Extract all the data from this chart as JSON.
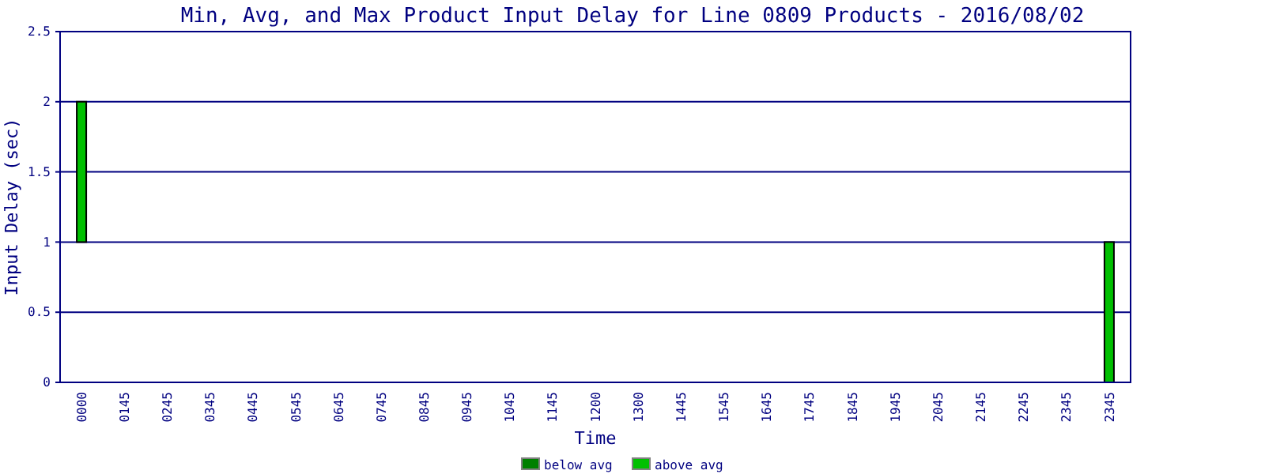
{
  "chart_data": {
    "type": "bar",
    "title": "Min, Avg, and Max Product Input Delay for Line 0809 Products - 2016/08/02",
    "xlabel": "Time",
    "ylabel": "Input Delay (sec)",
    "categories": [
      "0000",
      "0145",
      "0245",
      "0345",
      "0445",
      "0545",
      "0645",
      "0745",
      "0845",
      "0945",
      "1045",
      "1145",
      "1200",
      "1300",
      "1445",
      "1545",
      "1645",
      "1745",
      "1845",
      "1945",
      "2045",
      "2145",
      "2245",
      "2345",
      "2345"
    ],
    "series": [
      {
        "name": "below avg",
        "color": "#008000",
        "values": [
          null,
          null,
          null,
          null,
          null,
          null,
          null,
          null,
          null,
          null,
          null,
          null,
          null,
          null,
          null,
          null,
          null,
          null,
          null,
          null,
          null,
          null,
          null,
          null,
          null
        ]
      },
      {
        "name": "above avg",
        "color": "#00c000",
        "base": [
          1,
          null,
          null,
          null,
          null,
          null,
          null,
          null,
          null,
          null,
          null,
          null,
          null,
          null,
          null,
          null,
          null,
          null,
          null,
          null,
          null,
          null,
          null,
          null,
          0
        ],
        "values": [
          1,
          null,
          null,
          null,
          null,
          null,
          null,
          null,
          null,
          null,
          null,
          null,
          null,
          null,
          null,
          null,
          null,
          null,
          null,
          null,
          null,
          null,
          null,
          null,
          1
        ]
      }
    ],
    "ylim": [
      0,
      2.5
    ],
    "yticks": [
      0,
      0.5,
      1,
      1.5,
      2,
      2.5
    ],
    "grid": "y",
    "legend": "bottom"
  }
}
